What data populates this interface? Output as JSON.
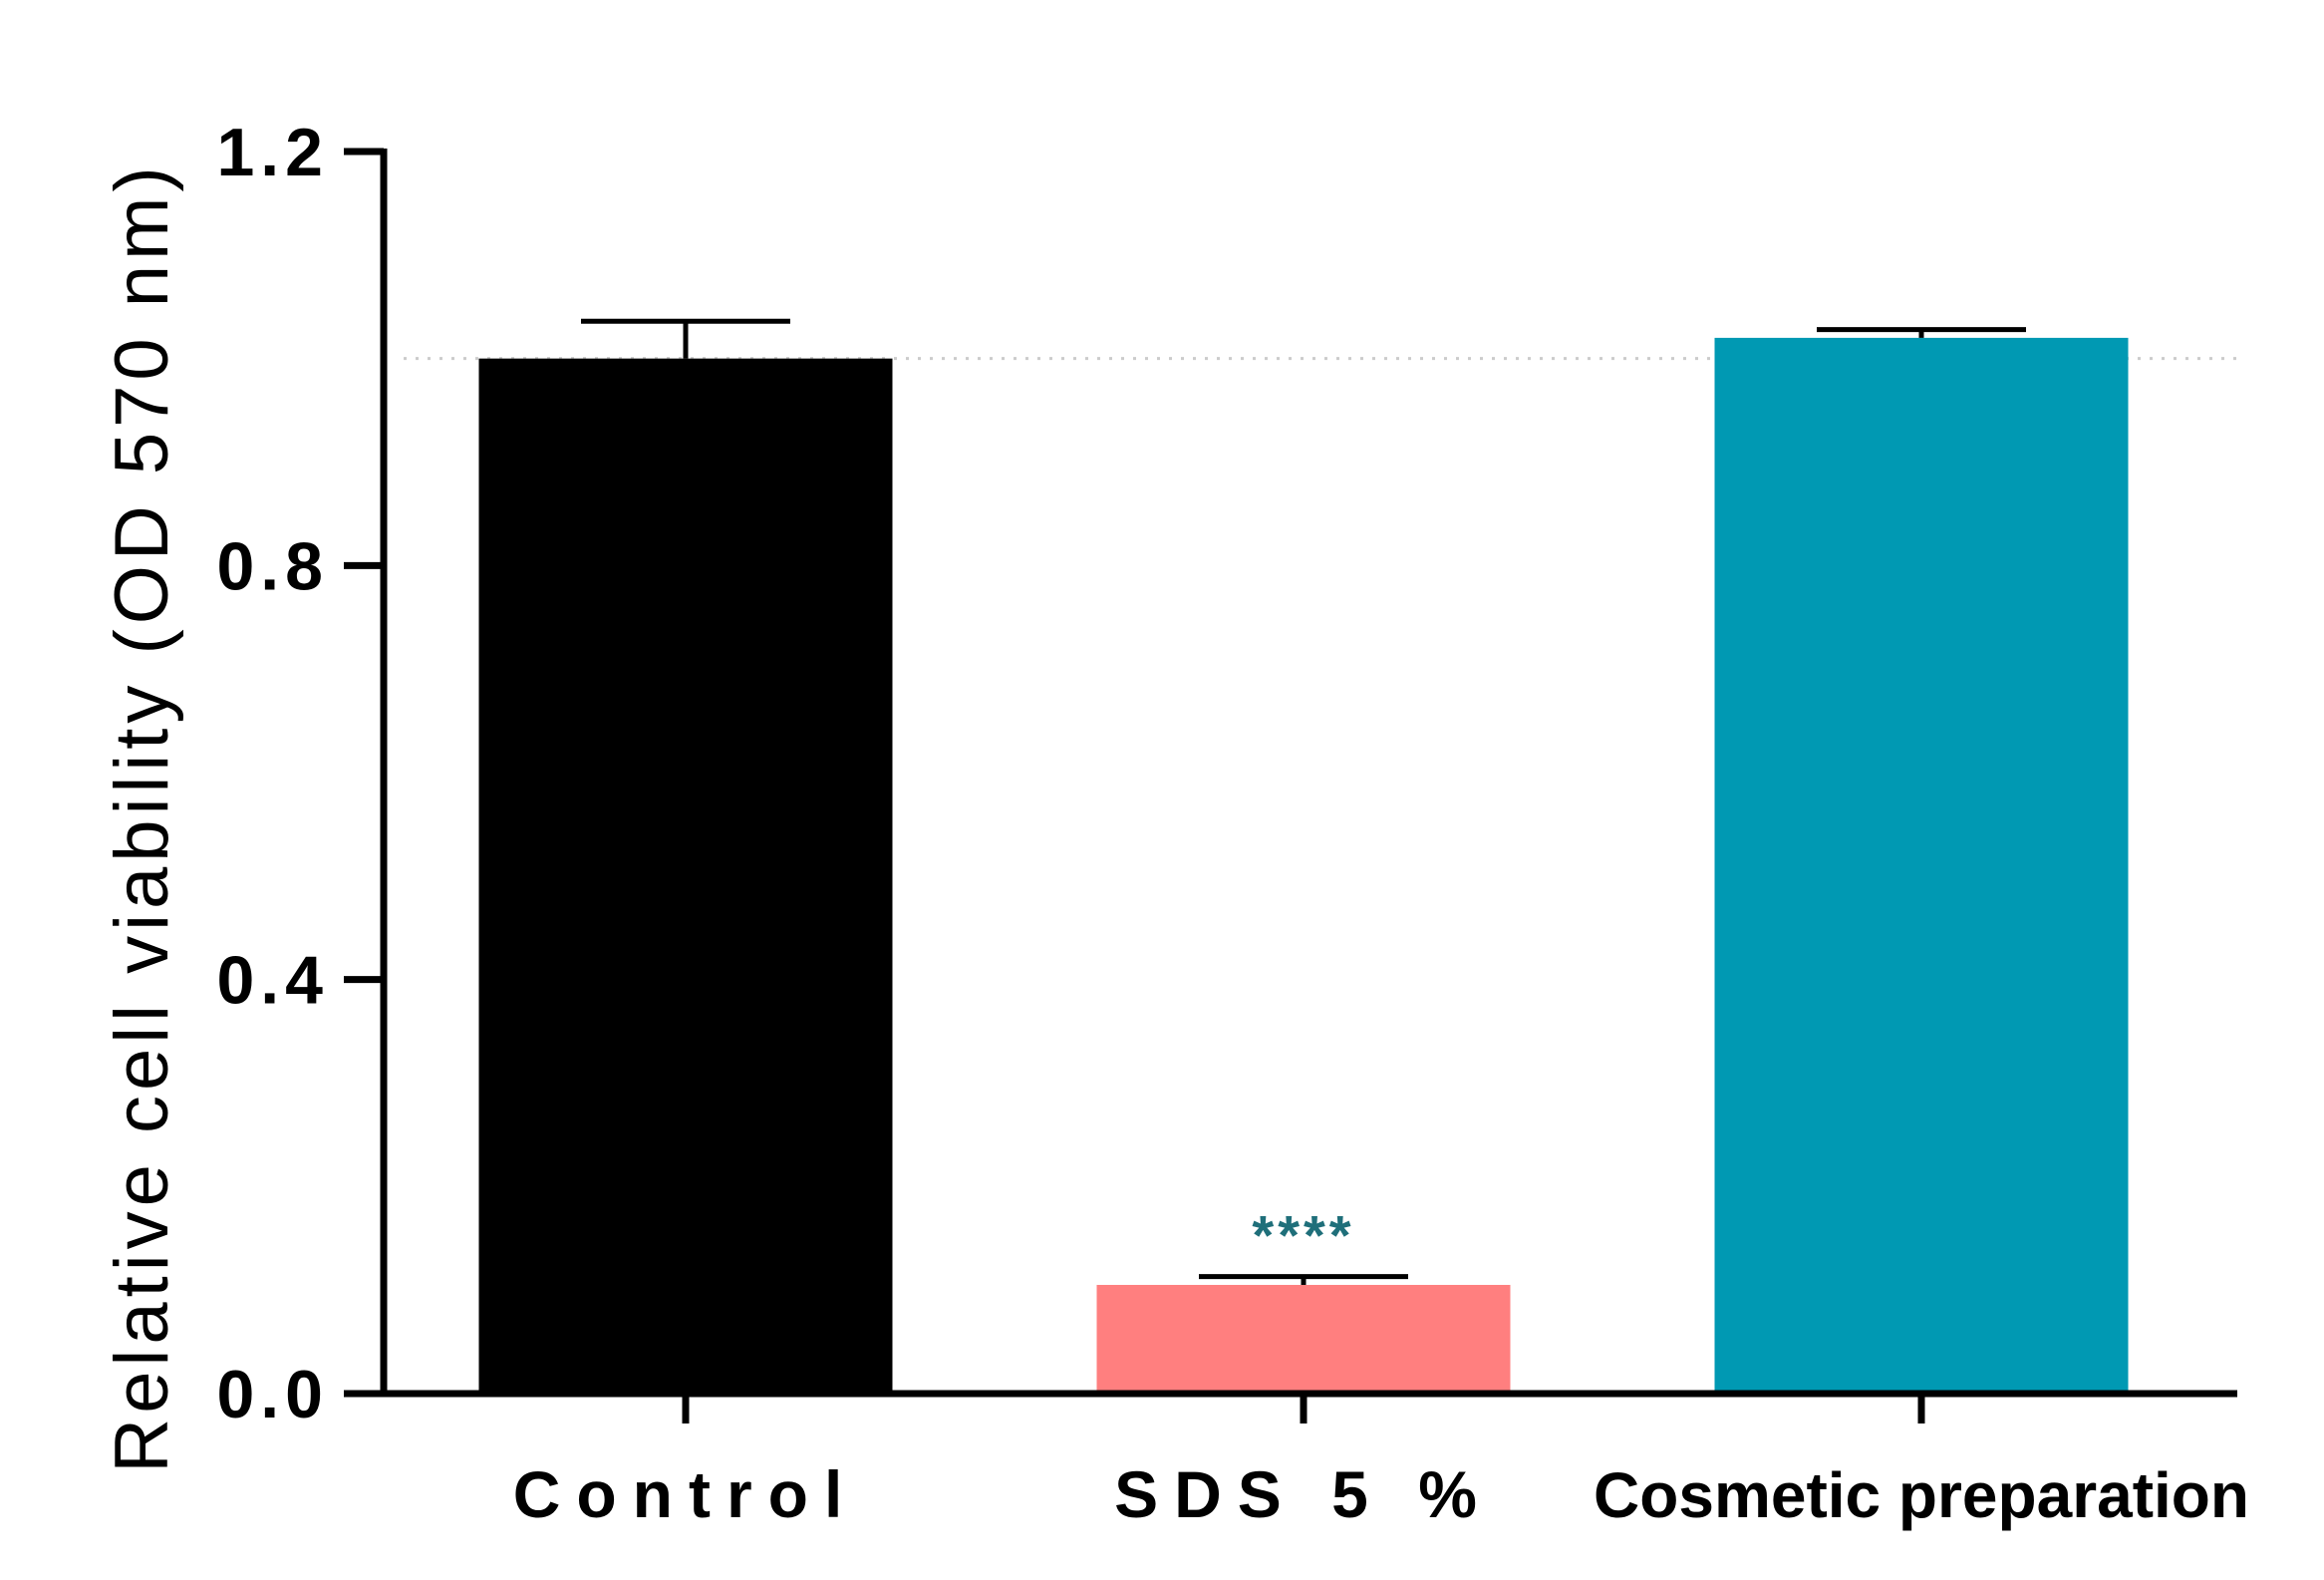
{
  "chart_data": {
    "type": "bar",
    "categories": [
      "Control",
      "SDS 5 %",
      "Cosmetic preparation"
    ],
    "values": [
      1.0,
      0.105,
      1.02
    ],
    "errors": [
      0.036,
      0.008,
      0.008
    ],
    "colors": [
      "#000000",
      "#ff7f7f",
      "#0099b3"
    ],
    "ylabel": "Relative cell viability (OD 570 nm)",
    "ylim": [
      0,
      1.2
    ],
    "yticks": [
      "0.0",
      "0.4",
      "0.8",
      "1.2"
    ],
    "reference_line": 1.0,
    "annotations": [
      {
        "category": "SDS 5 %",
        "text": "****"
      }
    ],
    "grid": false
  }
}
